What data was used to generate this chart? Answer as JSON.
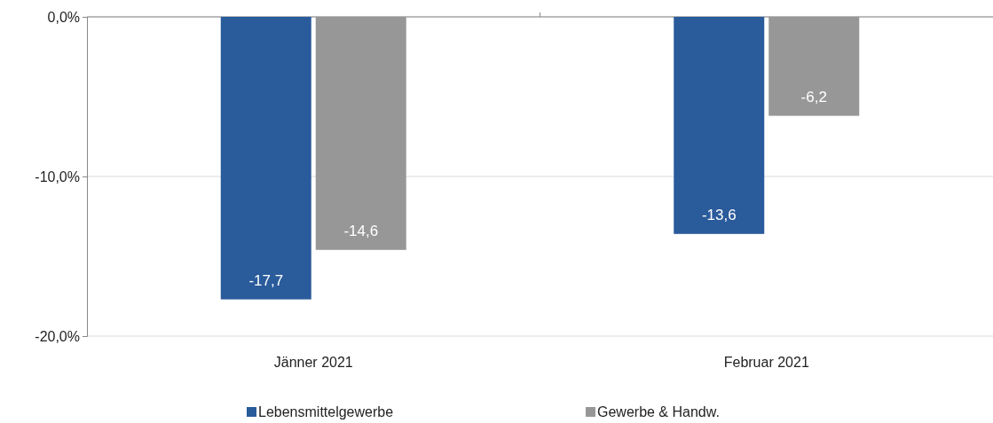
{
  "chart_data": {
    "type": "bar",
    "categories": [
      "Jänner 2021",
      "Februar 2021"
    ],
    "series": [
      {
        "name": "Lebensmittelgewerbe",
        "color": "#2a5b9b",
        "values": [
          -17.7,
          -13.6
        ],
        "value_labels": [
          "-17,7",
          "-13,6"
        ]
      },
      {
        "name": "Gewerbe & Handw.",
        "color": "#979797",
        "values": [
          -14.6,
          -6.2
        ],
        "value_labels": [
          "-14,6",
          "-6,2"
        ]
      }
    ],
    "ylim": [
      -20,
      0
    ],
    "yticks": [
      {
        "value": 0,
        "label": "0,0%"
      },
      {
        "value": -10,
        "label": "-10,0%"
      },
      {
        "value": -20,
        "label": "-20,0%"
      }
    ],
    "grid": "y",
    "legend": "bottom"
  }
}
